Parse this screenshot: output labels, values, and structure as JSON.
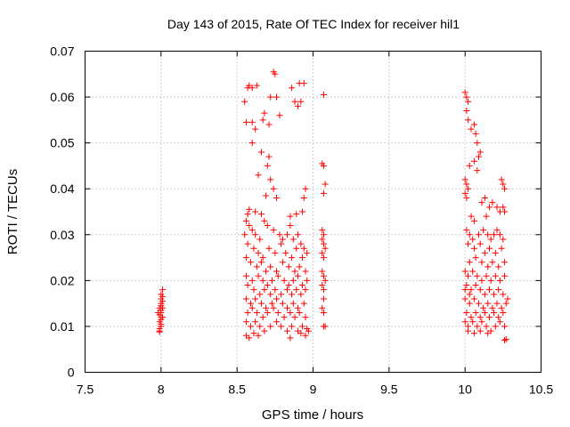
{
  "chart_data": {
    "type": "scatter",
    "title": "Day 143 of 2015, Rate Of TEC Index for receiver hil1",
    "xlabel": "GPS time / hours",
    "ylabel": "ROTI / TECUs",
    "xlim": [
      7.5,
      10.5
    ],
    "ylim": [
      0,
      0.07
    ],
    "xticks": [
      7.5,
      8,
      8.5,
      9,
      9.5,
      10,
      10.5
    ],
    "xtick_labels": [
      "7.5",
      "8",
      "8.5",
      "9",
      "9.5",
      "10",
      "10.5"
    ],
    "yticks": [
      0,
      0.01,
      0.02,
      0.03,
      0.04,
      0.05,
      0.06,
      0.07
    ],
    "ytick_labels": [
      "0",
      "0.01",
      "0.02",
      "0.03",
      "0.04",
      "0.05",
      "0.06",
      "0.07"
    ],
    "grid": true,
    "marker": "+",
    "color": "#ff0000",
    "series": [
      {
        "name": "hil1",
        "points": [
          [
            7.99,
            0.009
          ],
          [
            7.99,
            0.0095
          ],
          [
            8.0,
            0.01
          ],
          [
            8.0,
            0.0105
          ],
          [
            7.99,
            0.011
          ],
          [
            8.0,
            0.0115
          ],
          [
            8.0,
            0.012
          ],
          [
            7.99,
            0.0125
          ],
          [
            8.0,
            0.013
          ],
          [
            8.0,
            0.0135
          ],
          [
            7.99,
            0.014
          ],
          [
            8.0,
            0.0145
          ],
          [
            8.0,
            0.015
          ],
          [
            8.01,
            0.0155
          ],
          [
            8.0,
            0.016
          ],
          [
            8.01,
            0.0165
          ],
          [
            8.0,
            0.017
          ],
          [
            8.01,
            0.018
          ],
          [
            7.99,
            0.0088
          ],
          [
            8.01,
            0.012
          ],
          [
            7.98,
            0.013
          ],
          [
            8.01,
            0.014
          ],
          [
            8.57,
            0.062
          ],
          [
            8.58,
            0.0625
          ],
          [
            8.6,
            0.062
          ],
          [
            8.63,
            0.0625
          ],
          [
            8.74,
            0.0655
          ],
          [
            8.75,
            0.065
          ],
          [
            8.91,
            0.063
          ],
          [
            8.94,
            0.063
          ],
          [
            8.86,
            0.062
          ],
          [
            8.72,
            0.06
          ],
          [
            8.76,
            0.06
          ],
          [
            8.55,
            0.059
          ],
          [
            8.88,
            0.059
          ],
          [
            8.9,
            0.058
          ],
          [
            8.92,
            0.059
          ],
          [
            8.78,
            0.056
          ],
          [
            8.68,
            0.0565
          ],
          [
            8.67,
            0.055
          ],
          [
            8.56,
            0.0545
          ],
          [
            8.6,
            0.0545
          ],
          [
            8.62,
            0.053
          ],
          [
            8.71,
            0.054
          ],
          [
            8.6,
            0.05
          ],
          [
            8.66,
            0.048
          ],
          [
            8.71,
            0.047
          ],
          [
            8.7,
            0.045
          ],
          [
            8.64,
            0.043
          ],
          [
            8.72,
            0.042
          ],
          [
            8.74,
            0.04
          ],
          [
            8.69,
            0.0385
          ],
          [
            8.76,
            0.038
          ],
          [
            8.95,
            0.04
          ],
          [
            8.94,
            0.038
          ],
          [
            8.93,
            0.035
          ],
          [
            8.56,
            0.033
          ],
          [
            8.58,
            0.032
          ],
          [
            8.6,
            0.031
          ],
          [
            8.62,
            0.03
          ],
          [
            8.65,
            0.029
          ],
          [
            8.55,
            0.03
          ],
          [
            8.68,
            0.033
          ],
          [
            8.7,
            0.032
          ],
          [
            8.74,
            0.031
          ],
          [
            8.78,
            0.03
          ],
          [
            8.8,
            0.029
          ],
          [
            8.83,
            0.03
          ],
          [
            8.85,
            0.032
          ],
          [
            8.87,
            0.029
          ],
          [
            8.9,
            0.03
          ],
          [
            8.92,
            0.028
          ],
          [
            8.94,
            0.027
          ],
          [
            8.96,
            0.026
          ],
          [
            8.57,
            0.028
          ],
          [
            8.61,
            0.027
          ],
          [
            8.64,
            0.026
          ],
          [
            8.67,
            0.025
          ],
          [
            8.71,
            0.027
          ],
          [
            8.75,
            0.026
          ],
          [
            8.79,
            0.028
          ],
          [
            8.82,
            0.026
          ],
          [
            8.86,
            0.025
          ],
          [
            8.89,
            0.027
          ],
          [
            8.93,
            0.025
          ],
          [
            8.56,
            0.025
          ],
          [
            8.59,
            0.024
          ],
          [
            8.63,
            0.023
          ],
          [
            8.66,
            0.024
          ],
          [
            8.69,
            0.022
          ],
          [
            8.72,
            0.023
          ],
          [
            8.76,
            0.022
          ],
          [
            8.8,
            0.024
          ],
          [
            8.84,
            0.023
          ],
          [
            8.88,
            0.022
          ],
          [
            8.91,
            0.023
          ],
          [
            8.95,
            0.022
          ],
          [
            8.56,
            0.021
          ],
          [
            8.6,
            0.02
          ],
          [
            8.64,
            0.021
          ],
          [
            8.67,
            0.02
          ],
          [
            8.7,
            0.019
          ],
          [
            8.73,
            0.02
          ],
          [
            8.77,
            0.021
          ],
          [
            8.81,
            0.02
          ],
          [
            8.84,
            0.019
          ],
          [
            8.87,
            0.02
          ],
          [
            8.9,
            0.021
          ],
          [
            8.93,
            0.019
          ],
          [
            8.96,
            0.02
          ],
          [
            8.57,
            0.019
          ],
          [
            8.61,
            0.018
          ],
          [
            8.65,
            0.017
          ],
          [
            8.68,
            0.018
          ],
          [
            8.72,
            0.017
          ],
          [
            8.75,
            0.018
          ],
          [
            8.79,
            0.017
          ],
          [
            8.83,
            0.018
          ],
          [
            8.86,
            0.017
          ],
          [
            8.89,
            0.018
          ],
          [
            8.92,
            0.017
          ],
          [
            8.95,
            0.018
          ],
          [
            8.56,
            0.016
          ],
          [
            8.59,
            0.015
          ],
          [
            8.62,
            0.016
          ],
          [
            8.66,
            0.015
          ],
          [
            8.69,
            0.014
          ],
          [
            8.73,
            0.015
          ],
          [
            8.76,
            0.016
          ],
          [
            8.8,
            0.015
          ],
          [
            8.83,
            0.014
          ],
          [
            8.87,
            0.015
          ],
          [
            8.9,
            0.014
          ],
          [
            8.94,
            0.015
          ],
          [
            8.57,
            0.013
          ],
          [
            8.6,
            0.014
          ],
          [
            8.63,
            0.013
          ],
          [
            8.67,
            0.012
          ],
          [
            8.7,
            0.013
          ],
          [
            8.74,
            0.014
          ],
          [
            8.77,
            0.013
          ],
          [
            8.81,
            0.012
          ],
          [
            8.85,
            0.013
          ],
          [
            8.88,
            0.012
          ],
          [
            8.91,
            0.013
          ],
          [
            8.95,
            0.012
          ],
          [
            8.56,
            0.011
          ],
          [
            8.59,
            0.01
          ],
          [
            8.62,
            0.011
          ],
          [
            8.65,
            0.01
          ],
          [
            8.68,
            0.009
          ],
          [
            8.72,
            0.01
          ],
          [
            8.76,
            0.011
          ],
          [
            8.79,
            0.01
          ],
          [
            8.83,
            0.009
          ],
          [
            8.86,
            0.01
          ],
          [
            8.9,
            0.009
          ],
          [
            8.93,
            0.01
          ],
          [
            8.96,
            0.0095
          ],
          [
            8.56,
            0.008
          ],
          [
            8.58,
            0.0075
          ],
          [
            8.61,
            0.0085
          ],
          [
            8.64,
            0.008
          ],
          [
            8.85,
            0.0075
          ],
          [
            8.92,
            0.0085
          ],
          [
            8.95,
            0.008
          ],
          [
            8.97,
            0.009
          ],
          [
            8.57,
            0.0345
          ],
          [
            8.62,
            0.035
          ],
          [
            8.66,
            0.0345
          ],
          [
            8.85,
            0.034
          ],
          [
            8.89,
            0.0345
          ],
          [
            8.58,
            0.0355
          ],
          [
            9.07,
            0.0605
          ],
          [
            9.06,
            0.0455
          ],
          [
            9.07,
            0.045
          ],
          [
            9.07,
            0.039
          ],
          [
            9.08,
            0.041
          ],
          [
            9.06,
            0.031
          ],
          [
            9.07,
            0.03
          ],
          [
            9.06,
            0.029
          ],
          [
            9.07,
            0.028
          ],
          [
            9.08,
            0.027
          ],
          [
            9.06,
            0.026
          ],
          [
            9.07,
            0.025
          ],
          [
            9.06,
            0.022
          ],
          [
            9.07,
            0.021
          ],
          [
            9.08,
            0.02
          ],
          [
            9.06,
            0.019
          ],
          [
            9.07,
            0.018
          ],
          [
            9.07,
            0.016
          ],
          [
            9.06,
            0.014
          ],
          [
            9.07,
            0.013
          ],
          [
            9.07,
            0.01
          ],
          [
            9.08,
            0.01
          ],
          [
            10.0,
            0.061
          ],
          [
            10.01,
            0.06
          ],
          [
            10.02,
            0.059
          ],
          [
            10.01,
            0.057
          ],
          [
            10.02,
            0.055
          ],
          [
            10.04,
            0.053
          ],
          [
            10.06,
            0.054
          ],
          [
            10.07,
            0.052
          ],
          [
            10.08,
            0.05
          ],
          [
            10.09,
            0.047
          ],
          [
            10.1,
            0.048
          ],
          [
            10.06,
            0.046
          ],
          [
            10.03,
            0.045
          ],
          [
            10.08,
            0.044
          ],
          [
            10.0,
            0.042
          ],
          [
            10.01,
            0.041
          ],
          [
            10.02,
            0.04
          ],
          [
            10.0,
            0.039
          ],
          [
            10.01,
            0.038
          ],
          [
            10.24,
            0.042
          ],
          [
            10.25,
            0.041
          ],
          [
            10.26,
            0.04
          ],
          [
            10.11,
            0.037
          ],
          [
            10.13,
            0.038
          ],
          [
            10.16,
            0.036
          ],
          [
            10.18,
            0.037
          ],
          [
            10.21,
            0.036
          ],
          [
            10.23,
            0.035
          ],
          [
            10.25,
            0.036
          ],
          [
            10.26,
            0.035
          ],
          [
            10.04,
            0.034
          ],
          [
            10.14,
            0.034
          ],
          [
            10.06,
            0.033
          ],
          [
            10.01,
            0.031
          ],
          [
            10.03,
            0.03
          ],
          [
            10.05,
            0.029
          ],
          [
            10.09,
            0.03
          ],
          [
            10.12,
            0.031
          ],
          [
            10.15,
            0.03
          ],
          [
            10.17,
            0.029
          ],
          [
            10.19,
            0.03
          ],
          [
            10.21,
            0.031
          ],
          [
            10.23,
            0.03
          ],
          [
            10.25,
            0.029
          ],
          [
            10.02,
            0.028
          ],
          [
            10.06,
            0.027
          ],
          [
            10.1,
            0.028
          ],
          [
            10.13,
            0.026
          ],
          [
            10.16,
            0.027
          ],
          [
            10.2,
            0.026
          ],
          [
            10.24,
            0.027
          ],
          [
            10.03,
            0.024
          ],
          [
            10.07,
            0.025
          ],
          [
            10.11,
            0.024
          ],
          [
            10.15,
            0.023
          ],
          [
            10.18,
            0.024
          ],
          [
            10.22,
            0.023
          ],
          [
            10.26,
            0.024
          ],
          [
            10.0,
            0.022
          ],
          [
            10.02,
            0.021
          ],
          [
            10.05,
            0.022
          ],
          [
            10.08,
            0.021
          ],
          [
            10.11,
            0.02
          ],
          [
            10.14,
            0.021
          ],
          [
            10.17,
            0.02
          ],
          [
            10.2,
            0.021
          ],
          [
            10.23,
            0.02
          ],
          [
            10.26,
            0.021
          ],
          [
            10.01,
            0.019
          ],
          [
            10.04,
            0.018
          ],
          [
            10.07,
            0.019
          ],
          [
            10.1,
            0.018
          ],
          [
            10.13,
            0.017
          ],
          [
            10.16,
            0.018
          ],
          [
            10.19,
            0.017
          ],
          [
            10.22,
            0.018
          ],
          [
            10.25,
            0.017
          ],
          [
            10.28,
            0.016
          ],
          [
            10.0,
            0.016
          ],
          [
            10.03,
            0.015
          ],
          [
            10.06,
            0.016
          ],
          [
            10.09,
            0.015
          ],
          [
            10.12,
            0.014
          ],
          [
            10.15,
            0.015
          ],
          [
            10.18,
            0.014
          ],
          [
            10.21,
            0.015
          ],
          [
            10.24,
            0.014
          ],
          [
            10.27,
            0.015
          ],
          [
            10.01,
            0.013
          ],
          [
            10.04,
            0.012
          ],
          [
            10.07,
            0.013
          ],
          [
            10.1,
            0.012
          ],
          [
            10.13,
            0.013
          ],
          [
            10.16,
            0.012
          ],
          [
            10.19,
            0.013
          ],
          [
            10.22,
            0.012
          ],
          [
            10.25,
            0.013
          ],
          [
            10.0,
            0.011
          ],
          [
            10.02,
            0.01
          ],
          [
            10.05,
            0.011
          ],
          [
            10.08,
            0.01
          ],
          [
            10.11,
            0.011
          ],
          [
            10.14,
            0.01
          ],
          [
            10.17,
            0.009
          ],
          [
            10.2,
            0.01
          ],
          [
            10.23,
            0.011
          ],
          [
            10.26,
            0.01
          ],
          [
            10.02,
            0.009
          ],
          [
            10.06,
            0.0085
          ],
          [
            10.1,
            0.009
          ],
          [
            10.15,
            0.0085
          ],
          [
            10.26,
            0.007
          ],
          [
            10.27,
            0.0072
          ],
          [
            10.0,
            0.018
          ],
          [
            10.03,
            0.017
          ]
        ]
      }
    ]
  }
}
